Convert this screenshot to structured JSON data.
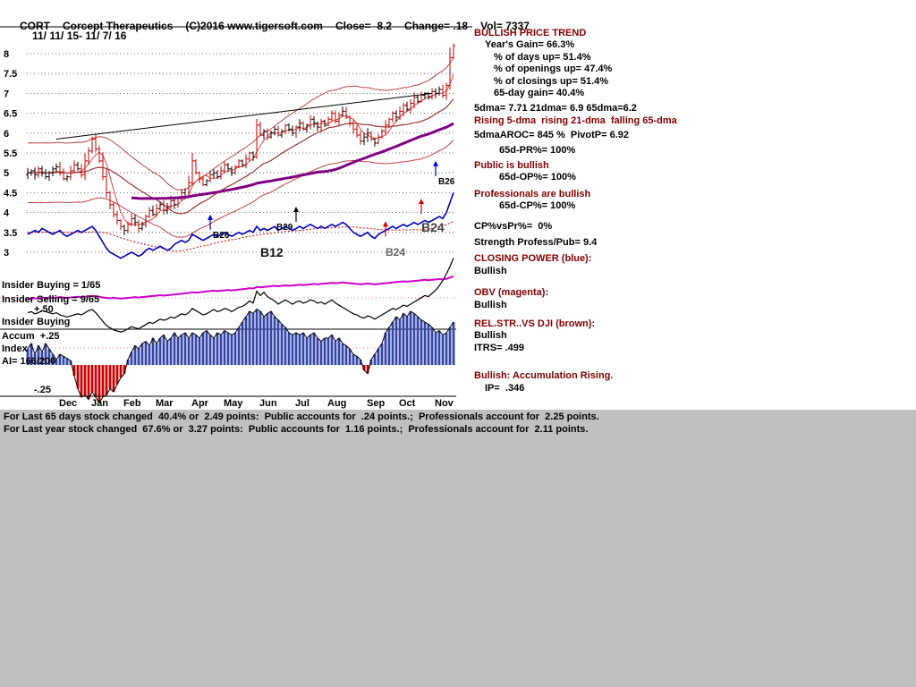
{
  "header": {
    "symbol": "CORT",
    "name": "Corcept Therapeutics",
    "copyright": "(C)2016 www.tigersoft.com",
    "close": "Close=  8.2",
    "change": "Change= .18",
    "volume": "Vol= 7337",
    "date_range": "11/ 11/ 15- 11/ 7/ 16"
  },
  "left_labels": {
    "insider_buying_ratio": "Insider Buying = 1/65",
    "insider_selling_ratio": "Insider Selling = 9/65",
    "plus_50": "+.50",
    "insider_buying": "Insider Buying",
    "accum": "Accum  +.25",
    "index": "Index",
    "ai": "AI= 166/200",
    "minus_25": "-.25"
  },
  "right_panel": {
    "lines": [
      {
        "text": "BULLISH PRICE TREND",
        "c": "m"
      },
      {
        "text": "Year's Gain= 66.3%",
        "ind": 12
      },
      {
        "text": "% of days up= 51.4%",
        "ind": 22
      },
      {
        "text": "% of openings up= 47.4%",
        "ind": 22
      },
      {
        "text": "% of closings up= 51.4%",
        "ind": 22
      },
      {
        "text": "65-day gain= 40.4%",
        "ind": 22
      },
      {
        "text": "5dma= 7.71 21dma= 6.9 65dma=6.2",
        "gap": 4
      },
      {
        "text": "Rising 5-dma  rising 21-dma  falling 65-dma",
        "c": "m"
      },
      {
        "text": "5dmaAROC= 845 %  PivotP= 6.92",
        "gap": 3
      },
      {
        "text": "65d-PR%= 100%",
        "ind": 28,
        "gap": 3
      },
      {
        "text": "Public is bullish",
        "c": "m",
        "gap": 4
      },
      {
        "text": "65d-OP%= 100%",
        "ind": 28
      },
      {
        "text": "Professionals are bullish",
        "c": "m",
        "gap": 5
      },
      {
        "text": "65d-CP%= 100%",
        "ind": 28
      },
      {
        "text": "CP%vsPr%=  0%",
        "gap": 9
      },
      {
        "text": "Strength Profess/Pub= 9.4",
        "gap": 5
      },
      {
        "text": "CLOSING POWER (blue):",
        "c": "m",
        "gap": 5
      },
      {
        "text": "Bullish"
      },
      {
        "text": "OBV (magenta):",
        "c": "m",
        "gap": 11
      },
      {
        "text": "Bullish"
      },
      {
        "text": "REL.STR..VS DJI (brown):",
        "c": "m",
        "gap": 8
      },
      {
        "text": "Bullish"
      },
      {
        "text": "ITRS= .499"
      },
      {
        "text": "Bullish: Accumulation Rising.",
        "c": "m",
        "gap": 18
      },
      {
        "text": "IP=  .346",
        "ind": 12
      }
    ]
  },
  "footer": {
    "line1": "For Last 65 days stock changed  40.4% or  2.49 points:  Public accounts for  .24 points.;  Professionals account for  2.25 points.",
    "line2": "For Last year stock changed  67.6% or  3.27 points:  Public accounts for  1.16 points.;  Professionals account for  2.11 points."
  },
  "chart_data": {
    "type": "stock-technical-multipanel",
    "title": "CORT Corcept Therapeutics 11/11/15 - 11/7/16",
    "ylim": [
      3,
      8.5
    ],
    "grid": "dotted horizontal",
    "y_axis": {
      "ticks": [
        8,
        7.5,
        7,
        6.5,
        6,
        5.5,
        5,
        4.5,
        4,
        3.5,
        3
      ]
    },
    "x_axis": {
      "months": [
        "Dec",
        "Jan",
        "Feb",
        "Mar",
        "Apr",
        "May",
        "Jun",
        "Jul",
        "Aug",
        "Sep",
        "Oct",
        "Nov"
      ],
      "month_days": [
        11,
        20,
        29,
        38,
        48,
        57,
        67,
        77,
        86,
        97,
        106,
        116
      ]
    },
    "price": {
      "closes": [
        5.0,
        5.05,
        4.95,
        5.1,
        5.0,
        4.9,
        5.0,
        5.1,
        5.15,
        5.0,
        4.85,
        4.9,
        5.05,
        5.2,
        5.1,
        4.95,
        5.3,
        5.55,
        5.85,
        5.6,
        5.3,
        4.9,
        4.5,
        4.2,
        3.95,
        3.8,
        3.65,
        3.55,
        3.7,
        3.85,
        3.75,
        3.6,
        3.7,
        3.9,
        4.05,
        3.95,
        4.1,
        4.2,
        4.05,
        4.15,
        4.3,
        4.2,
        4.35,
        4.5,
        4.4,
        4.75,
        5.3,
        5.0,
        4.85,
        4.7,
        4.8,
        4.95,
        5.0,
        4.9,
        5.05,
        5.2,
        5.1,
        5.0,
        5.15,
        5.3,
        5.2,
        5.35,
        5.5,
        5.4,
        6.2,
        5.95,
        6.05,
        5.9,
        6.0,
        6.1,
        5.95,
        6.05,
        6.2,
        6.1,
        6.0,
        6.15,
        6.25,
        6.1,
        6.2,
        6.35,
        6.25,
        6.15,
        6.3,
        6.2,
        6.35,
        6.5,
        6.3,
        6.45,
        6.55,
        6.4,
        6.25,
        6.1,
        5.95,
        5.8,
        5.9,
        6.0,
        5.85,
        5.75,
        5.9,
        6.05,
        6.2,
        6.35,
        6.5,
        6.4,
        6.55,
        6.7,
        6.6,
        6.75,
        6.9,
        6.8,
        6.95,
        7.0,
        6.9,
        7.05,
        7.0,
        7.1,
        6.95,
        7.2,
        7.9,
        8.2
      ]
    },
    "closing_power": {
      "values": [
        3.45,
        3.5,
        3.55,
        3.5,
        3.6,
        3.55,
        3.5,
        3.45,
        3.5,
        3.55,
        3.45,
        3.4,
        3.45,
        3.5,
        3.55,
        3.5,
        3.55,
        3.6,
        3.65,
        3.55,
        3.4,
        3.25,
        3.1,
        3.0,
        2.95,
        2.9,
        2.85,
        2.9,
        2.95,
        3.0,
        2.95,
        2.9,
        2.95,
        3.05,
        3.1,
        3.05,
        3.1,
        3.15,
        3.1,
        3.05,
        3.1,
        3.2,
        3.25,
        3.3,
        3.25,
        3.3,
        3.45,
        3.4,
        3.35,
        3.3,
        3.35,
        3.4,
        3.45,
        3.4,
        3.45,
        3.5,
        3.45,
        3.4,
        3.45,
        3.5,
        3.45,
        3.5,
        3.55,
        3.5,
        3.65,
        3.55,
        3.6,
        3.55,
        3.6,
        3.65,
        3.55,
        3.6,
        3.65,
        3.6,
        3.55,
        3.6,
        3.65,
        3.6,
        3.65,
        3.7,
        3.65,
        3.6,
        3.65,
        3.6,
        3.65,
        3.7,
        3.65,
        3.7,
        3.75,
        3.7,
        3.6,
        3.5,
        3.45,
        3.4,
        3.45,
        3.5,
        3.4,
        3.35,
        3.45,
        3.5,
        3.55,
        3.6,
        3.65,
        3.6,
        3.65,
        3.7,
        3.65,
        3.7,
        3.75,
        3.7,
        3.75,
        3.8,
        3.75,
        3.8,
        3.85,
        3.9,
        3.85,
        4.0,
        4.25,
        4.5
      ]
    },
    "obv": {
      "values": [
        0.28,
        0.29,
        0.3,
        0.29,
        0.31,
        0.3,
        0.32,
        0.31,
        0.32,
        0.33,
        0.32,
        0.31,
        0.32,
        0.33,
        0.34,
        0.33,
        0.34,
        0.35,
        0.36,
        0.35,
        0.34,
        0.32,
        0.31,
        0.3,
        0.31,
        0.3,
        0.29,
        0.3,
        0.31,
        0.32,
        0.33,
        0.32,
        0.33,
        0.34,
        0.35,
        0.36,
        0.37,
        0.38,
        0.37,
        0.38,
        0.39,
        0.4,
        0.41,
        0.42,
        0.43,
        0.44,
        0.46,
        0.45,
        0.46,
        0.47,
        0.48,
        0.49,
        0.5,
        0.49,
        0.5,
        0.51,
        0.52,
        0.51,
        0.52,
        0.53,
        0.54,
        0.55,
        0.57,
        0.56,
        0.6,
        0.59,
        0.6,
        0.61,
        0.62,
        0.63,
        0.62,
        0.63,
        0.64,
        0.63,
        0.64,
        0.65,
        0.66,
        0.65,
        0.66,
        0.67,
        0.68,
        0.67,
        0.68,
        0.69,
        0.7,
        0.71,
        0.7,
        0.71,
        0.72,
        0.71,
        0.7,
        0.69,
        0.68,
        0.67,
        0.68,
        0.69,
        0.68,
        0.67,
        0.68,
        0.69,
        0.7,
        0.71,
        0.72,
        0.73,
        0.74,
        0.75,
        0.74,
        0.75,
        0.76,
        0.77,
        0.78,
        0.79,
        0.78,
        0.79,
        0.8,
        0.81,
        0.8,
        0.82,
        0.85,
        0.88
      ]
    },
    "rel_str": {
      "values": [
        0.42,
        0.43,
        0.41,
        0.42,
        0.44,
        0.43,
        0.42,
        0.41,
        0.42,
        0.4,
        0.39,
        0.38,
        0.39,
        0.4,
        0.41,
        0.4,
        0.42,
        0.44,
        0.45,
        0.42,
        0.38,
        0.34,
        0.3,
        0.28,
        0.26,
        0.25,
        0.24,
        0.25,
        0.27,
        0.29,
        0.28,
        0.27,
        0.29,
        0.31,
        0.33,
        0.32,
        0.34,
        0.36,
        0.35,
        0.36,
        0.38,
        0.37,
        0.39,
        0.41,
        0.4,
        0.42,
        0.46,
        0.44,
        0.42,
        0.4,
        0.41,
        0.43,
        0.45,
        0.43,
        0.44,
        0.46,
        0.45,
        0.43,
        0.45,
        0.47,
        0.48,
        0.5,
        0.53,
        0.51,
        0.62,
        0.58,
        0.61,
        0.57,
        0.55,
        0.53,
        0.5,
        0.52,
        0.54,
        0.52,
        0.5,
        0.52,
        0.53,
        0.51,
        0.52,
        0.54,
        0.53,
        0.51,
        0.52,
        0.5,
        0.52,
        0.54,
        0.51,
        0.49,
        0.47,
        0.45,
        0.43,
        0.41,
        0.4,
        0.38,
        0.37,
        0.39,
        0.38,
        0.36,
        0.38,
        0.4,
        0.42,
        0.44,
        0.46,
        0.45,
        0.47,
        0.49,
        0.48,
        0.5,
        0.52,
        0.54,
        0.56,
        0.58,
        0.57,
        0.6,
        0.63,
        0.67,
        0.72,
        0.78,
        0.85,
        0.93
      ]
    },
    "accum_index": {
      "scale_labels": [
        "+.50",
        "+.25",
        "-.25"
      ],
      "reading": "AI= 166/200",
      "values": [
        0.15,
        0.2,
        0.1,
        0.18,
        0.12,
        0.2,
        0.15,
        0.1,
        0.05,
        0.1,
        0.08,
        0.06,
        0.04,
        -0.1,
        -0.22,
        -0.3,
        -0.28,
        -0.32,
        -0.25,
        -0.3,
        -0.35,
        -0.3,
        -0.28,
        -0.22,
        -0.25,
        -0.18,
        -0.12,
        -0.08,
        0.05,
        0.12,
        0.18,
        0.15,
        0.2,
        0.22,
        0.18,
        0.25,
        0.2,
        0.25,
        0.28,
        0.22,
        0.25,
        0.3,
        0.25,
        0.28,
        0.3,
        0.25,
        0.3,
        0.28,
        0.25,
        0.3,
        0.32,
        0.28,
        0.25,
        0.3,
        0.28,
        0.32,
        0.3,
        0.28,
        0.3,
        0.35,
        0.4,
        0.45,
        0.5,
        0.48,
        0.52,
        0.5,
        0.45,
        0.48,
        0.5,
        0.45,
        0.42,
        0.38,
        0.35,
        0.3,
        0.28,
        0.3,
        0.28,
        0.3,
        0.25,
        0.28,
        0.3,
        0.25,
        0.22,
        0.25,
        0.25,
        0.28,
        0.22,
        0.25,
        0.2,
        0.18,
        0.15,
        0.1,
        0.08,
        0.05,
        -0.05,
        -0.08,
        0.05,
        0.1,
        0.15,
        0.2,
        0.3,
        0.35,
        0.4,
        0.45,
        0.42,
        0.48,
        0.45,
        0.5,
        0.48,
        0.45,
        0.42,
        0.4,
        0.38,
        0.35,
        0.3,
        0.32,
        0.28,
        0.3,
        0.35,
        0.4
      ]
    },
    "trendline": {
      "from_day": 8,
      "from_price": 5.85,
      "to_day": 113,
      "to_price": 7.0
    },
    "annotations": [
      {
        "label": "B26",
        "day": 51,
        "price": 3.95,
        "color": "#0000dd"
      },
      {
        "label": "B29",
        "day": 75,
        "price": 4.15,
        "color": "#000000",
        "label_dx": -22
      },
      {
        "label": "",
        "day": 100,
        "price": 3.78,
        "color": "#dd0000"
      },
      {
        "label": "",
        "day": 110,
        "price": 4.35,
        "color": "#dd0000"
      },
      {
        "label": "B26",
        "day": 114,
        "price": 5.3,
        "color": "#0000dd"
      }
    ],
    "cp_labels": [
      {
        "label": "B12",
        "day": 65,
        "y": 287,
        "color": "#111111",
        "size": 14
      },
      {
        "label": "B24",
        "day": 100,
        "y": 286,
        "color": "#666666",
        "size": 12
      },
      {
        "label": "B24",
        "day": 110,
        "y": 259,
        "color": "#444444",
        "size": 14
      }
    ],
    "colors": {
      "maroon": "#800000",
      "price": "#000000",
      "price_up": "#cc0000",
      "ma5": "#dd4444",
      "ma21": "#993333",
      "band": "#bb4444",
      "ma65": "#800080",
      "cp": "#0000bb",
      "cp_ma": "#cc0000",
      "obv": "#cc00cc",
      "rel": "#000000",
      "ai_pos": "#3344aa",
      "ai_neg": "#cc0000"
    }
  }
}
